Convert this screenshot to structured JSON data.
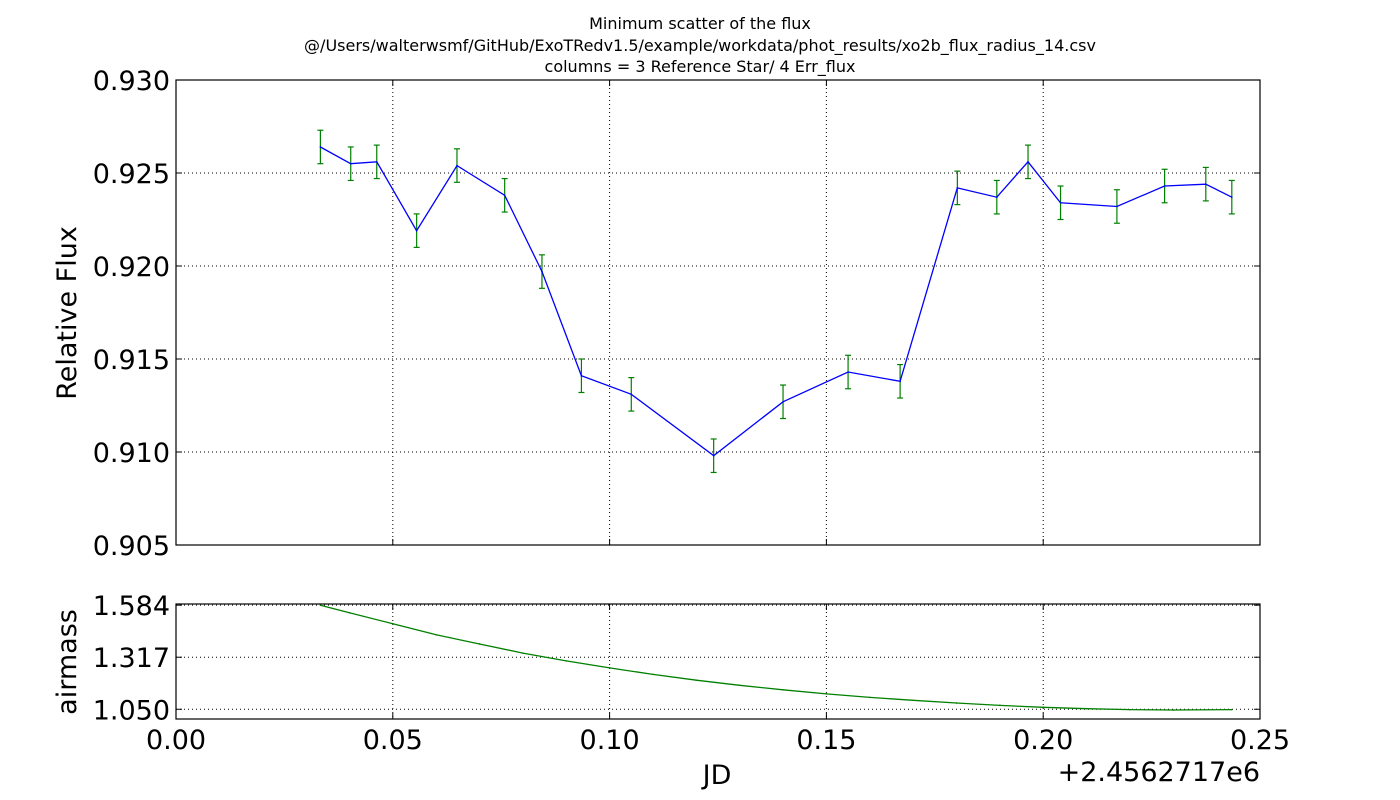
{
  "figure": {
    "title_lines": [
      "Minimum scatter of the flux",
      "@/Users/walterwsmf/GitHub/ExoTRedv1.5/example/workdata/phot_results/xo2b_flux_radius_14.csv",
      "columns = 3 Reference Star/ 4 Err_flux"
    ]
  },
  "chart_data": [
    {
      "type": "line",
      "title": "",
      "xlabel": "",
      "ylabel": "Relative Flux",
      "xlim": [
        0.0,
        0.25
      ],
      "ylim": [
        0.905,
        0.93
      ],
      "grid": true,
      "x_ticks": [
        0.0,
        0.05,
        0.1,
        0.15,
        0.2,
        0.25
      ],
      "x_tick_labels": [],
      "y_ticks": [
        0.905,
        0.91,
        0.915,
        0.92,
        0.925,
        0.93
      ],
      "y_tick_labels": [
        "0.905",
        "0.910",
        "0.915",
        "0.920",
        "0.925",
        "0.930"
      ],
      "series": [
        {
          "line_color": "#0000ff",
          "errorbar_color": "#008000",
          "x": [
            0.0333,
            0.0403,
            0.0463,
            0.0555,
            0.0648,
            0.0758,
            0.0844,
            0.0935,
            0.105,
            0.124,
            0.14,
            0.155,
            0.167,
            0.1802,
            0.1893,
            0.1965,
            0.204,
            0.217,
            0.228,
            0.2375,
            0.2435
          ],
          "y": [
            0.9264,
            0.9255,
            0.9256,
            0.9219,
            0.9254,
            0.9238,
            0.9197,
            0.9141,
            0.9131,
            0.9098,
            0.9127,
            0.9143,
            0.9138,
            0.9242,
            0.9237,
            0.9256,
            0.9234,
            0.9232,
            0.9243,
            0.9244,
            0.9237
          ],
          "yerr": [
            0.0009,
            0.0009,
            0.0009,
            0.0009,
            0.0009,
            0.0009,
            0.0009,
            0.0009,
            0.0009,
            0.0009,
            0.0009,
            0.0009,
            0.0009,
            0.0009,
            0.0009,
            0.0009,
            0.0009,
            0.0009,
            0.0009,
            0.0009,
            0.0009
          ]
        }
      ]
    },
    {
      "type": "line",
      "title": "",
      "xlabel": "JD",
      "x_offset_label": "+2.4562717e6",
      "ylabel": "airmass",
      "xlim": [
        0.0,
        0.25
      ],
      "ylim": [
        1.0,
        1.59
      ],
      "grid": true,
      "x_ticks": [
        0.0,
        0.05,
        0.1,
        0.15,
        0.2,
        0.25
      ],
      "x_tick_labels": [
        "0.00",
        "0.05",
        "0.10",
        "0.15",
        "0.20",
        "0.25"
      ],
      "y_ticks": [
        1.05,
        1.317,
        1.584
      ],
      "y_tick_labels": [
        "1.050",
        "1.317",
        "1.584"
      ],
      "series": [
        {
          "line_color": "#008000",
          "x": [
            0.0333,
            0.04,
            0.05,
            0.06,
            0.07,
            0.08,
            0.09,
            0.1,
            0.11,
            0.12,
            0.13,
            0.14,
            0.15,
            0.16,
            0.17,
            0.18,
            0.19,
            0.2,
            0.21,
            0.22,
            0.23,
            0.2435
          ],
          "y": [
            1.584,
            1.545,
            1.489,
            1.432,
            1.385,
            1.338,
            1.298,
            1.262,
            1.229,
            1.199,
            1.173,
            1.15,
            1.129,
            1.111,
            1.096,
            1.082,
            1.07,
            1.06,
            1.053,
            1.048,
            1.046,
            1.048
          ]
        }
      ]
    }
  ]
}
